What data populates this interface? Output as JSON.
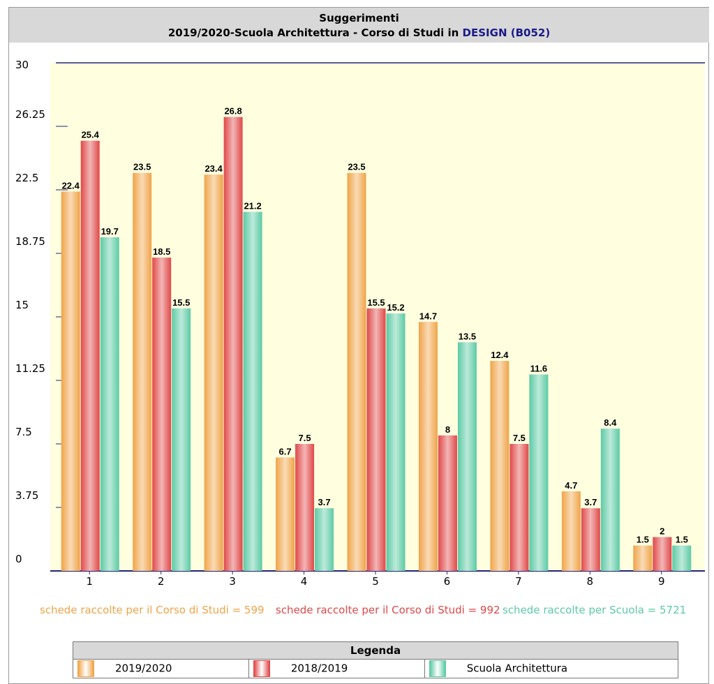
{
  "chart_data": {
    "type": "bar",
    "title": "Suggerimenti",
    "subtitle": "2019/2020-Scuola Architettura - Corso di Studi in",
    "subtitle_course": "DESIGN (B052)",
    "categories": [
      "1",
      "2",
      "3",
      "4",
      "5",
      "6",
      "7",
      "8",
      "9"
    ],
    "series": [
      {
        "name": "2019/2020",
        "color": "#f0a448",
        "values": [
          22.4,
          23.5,
          23.4,
          6.7,
          23.5,
          14.7,
          12.4,
          4.7,
          1.5
        ]
      },
      {
        "name": "2018/2019",
        "color": "#e04848",
        "values": [
          25.4,
          18.5,
          26.8,
          7.5,
          15.5,
          8,
          7.5,
          3.7,
          2
        ]
      },
      {
        "name": "Scuola Architettura",
        "color": "#5ccaa4",
        "values": [
          19.7,
          15.5,
          21.2,
          3.7,
          15.2,
          13.5,
          11.6,
          8.4,
          1.5
        ]
      }
    ],
    "ylim": [
      0,
      30
    ],
    "yticks": [
      0,
      3.75,
      7.5,
      11.25,
      15,
      18.75,
      22.5,
      26.25,
      30
    ],
    "notes": [
      "schede raccolte per il Corso di Studi = 599",
      "schede raccolte per il Corso di Studi = 992",
      "schede raccolte per Scuola = 5721"
    ],
    "legend_title": "Legenda"
  }
}
